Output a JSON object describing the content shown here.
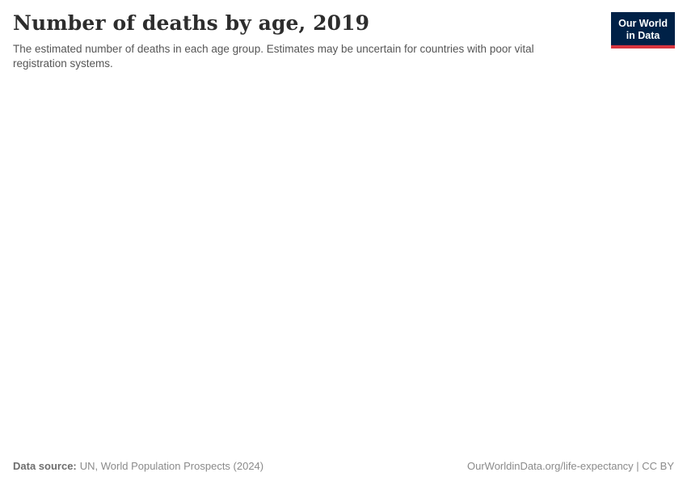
{
  "header": {
    "title": "Number of deaths by age, 2019",
    "subtitle": "The estimated number of deaths in each age group. Estimates may be uncertain for countries with poor vital registration systems.",
    "logo": {
      "line1": "Our World",
      "line2": "in Data"
    }
  },
  "footer": {
    "source_label": "Data source:",
    "source_value": "UN, World Population Prospects (2024)",
    "attribution": "OurWorldinData.org/life-expectancy | CC BY"
  },
  "colors": {
    "background": "#ffffff",
    "title_text": "#2d2d2d",
    "subtitle_text": "#565656",
    "footer_text": "#8b8b8b",
    "logo_navy": "#002147",
    "logo_red": "#d8353f",
    "logo_text": "#ffffff"
  },
  "chart_data": {
    "type": "area",
    "title": "Number of deaths by age, 2019",
    "subtitle": "The estimated number of deaths in each age group. Estimates may be uncertain for countries with poor vital registration systems.",
    "categories": [],
    "series": [],
    "note": "Plot area is blank in the screenshot: no axes, gridlines, legend, or data points are rendered."
  }
}
